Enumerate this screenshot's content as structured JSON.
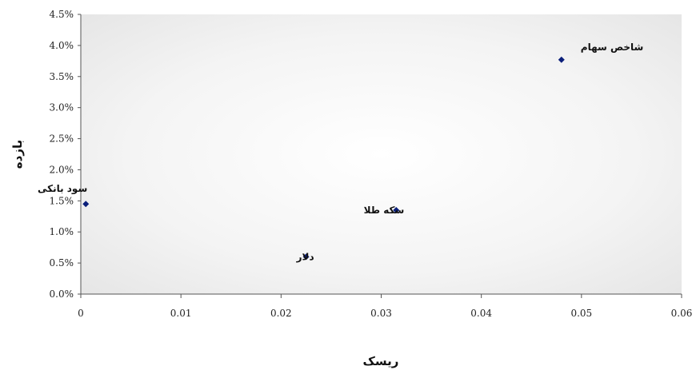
{
  "chart_data": {
    "type": "scatter",
    "xlabel": "ریسک",
    "ylabel": "بازده",
    "xlim": [
      0,
      0.06
    ],
    "ylim": [
      0,
      4.5
    ],
    "x_ticks": [
      "0",
      "0.01",
      "0.02",
      "0.03",
      "0.04",
      "0.05",
      "0.06"
    ],
    "y_ticks": [
      "0.0%",
      "0.5%",
      "1.0%",
      "1.5%",
      "2.0%",
      "2.5%",
      "3.0%",
      "3.5%",
      "4.0%",
      "4.5%"
    ],
    "points": [
      {
        "label": "سود بانکی",
        "x": 0.0005,
        "y": 1.45
      },
      {
        "label": "دلار",
        "x": 0.0225,
        "y": 0.6
      },
      {
        "label": "سکه طلا",
        "x": 0.0315,
        "y": 1.35
      },
      {
        "label": "شاخص سهام",
        "x": 0.048,
        "y": 3.77
      }
    ],
    "marker_color": "#0b1f7a",
    "background": "radial-gradient white-to-light-gray",
    "grid": false
  }
}
